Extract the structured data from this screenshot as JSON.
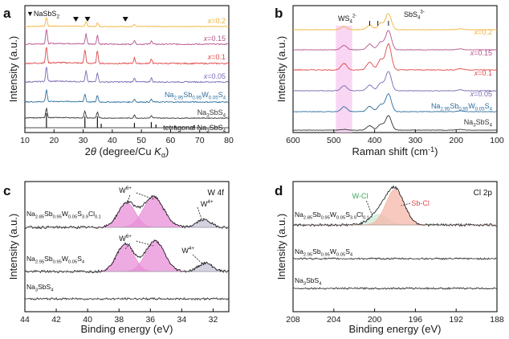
{
  "chart_data": [
    {
      "type": "line",
      "panel": "a",
      "title": "",
      "xlabel": "2θ (degree/Cu Kα)",
      "ylabel": "Intensity (a.u.)",
      "xlim": [
        10,
        80
      ],
      "xticks": [
        10,
        20,
        30,
        40,
        50,
        60,
        70,
        80
      ],
      "marker_legend": "▼NaSbS2",
      "marker_positions": [
        17.4,
        27.5,
        31.5,
        44.5
      ],
      "series": [
        {
          "name": "x=0.2",
          "color": "#f2b233",
          "peaks": [
            [
              17.4,
              1.0
            ],
            [
              31.0,
              0.55
            ],
            [
              34.9,
              0.4
            ],
            [
              47.6,
              0.25
            ]
          ]
        },
        {
          "name": "x=0.15",
          "color": "#b5538c",
          "peaks": [
            [
              17.4,
              1.0
            ],
            [
              31.0,
              0.7
            ],
            [
              34.9,
              0.6
            ],
            [
              47.6,
              0.3
            ],
            [
              53.4,
              0.25
            ]
          ]
        },
        {
          "name": "x=0.1",
          "color": "#e0484a",
          "peaks": [
            [
              17.4,
              1.0
            ],
            [
              30.6,
              0.85
            ],
            [
              34.9,
              0.8
            ],
            [
              47.6,
              0.35
            ],
            [
              53.4,
              0.3
            ]
          ]
        },
        {
          "name": "x=0.05",
          "color": "#7a67b3",
          "peaks": [
            [
              17.4,
              1.0
            ],
            [
              31.0,
              0.75
            ],
            [
              34.9,
              0.65
            ],
            [
              47.6,
              0.3
            ],
            [
              53.4,
              0.28
            ]
          ]
        },
        {
          "name": "Na2.95Sb0.95W0.05S4",
          "color": "#2c6e9e",
          "peaks": [
            [
              17.4,
              1.0
            ],
            [
              30.6,
              0.65
            ],
            [
              34.9,
              0.55
            ],
            [
              47.6,
              0.25
            ],
            [
              53.4,
              0.22
            ]
          ]
        },
        {
          "name": "Na3SbS4",
          "color": "#333333",
          "peaks": [
            [
              17.4,
              1.0
            ],
            [
              30.6,
              0.7
            ],
            [
              34.9,
              0.6
            ],
            [
              47.6,
              0.3
            ],
            [
              53.4,
              0.25
            ]
          ]
        },
        {
          "name": "tetragonal Na3SbS4",
          "color": "#111111",
          "stick_positions": [
            17.4,
            30.6,
            34.9,
            36.2,
            47.6,
            53.4,
            55.0,
            61.5,
            68.0
          ]
        }
      ]
    },
    {
      "type": "line",
      "panel": "b",
      "title": "",
      "xlabel": "Raman shift (cm-1)",
      "ylabel": "Intensity (a.u.)",
      "xlim": [
        600,
        100
      ],
      "xticks": [
        600,
        500,
        400,
        300,
        200,
        100
      ],
      "highlight_band": [
        495,
        455
      ],
      "annotations": [
        "WS4 2-",
        "SbS4 3-"
      ],
      "series": [
        {
          "name": "x=0.2",
          "color": "#f2b233"
        },
        {
          "name": "x=0.15",
          "color": "#b5538c"
        },
        {
          "name": "x=0.1",
          "color": "#e0484a"
        },
        {
          "name": "x=0.05",
          "color": "#7a67b3"
        },
        {
          "name": "Na2.95Sb0.95W0.05S4",
          "color": "#2c6e9e"
        },
        {
          "name": "Na3SbS4",
          "color": "#333333"
        }
      ],
      "peaks": [
        [
          475,
          0.35
        ],
        [
          412,
          0.3
        ],
        [
          385,
          0.4
        ],
        [
          366,
          1.0
        ],
        [
          190,
          0.05
        ]
      ]
    },
    {
      "type": "line",
      "panel": "c",
      "title": "W 4f",
      "xlabel": "Binding energy (eV)",
      "ylabel": "Intensity (a.u.)",
      "xlim": [
        44,
        31
      ],
      "xticks": [
        44,
        42,
        40,
        38,
        36,
        34,
        32
      ],
      "annotations": [
        "W6+",
        "W4+"
      ],
      "series": [
        {
          "name": "Na2.85Sb0.95W0.05S3.9Cl0.1",
          "fit_peaks": [
            [
              37.5,
              0.8
            ],
            [
              35.8,
              1.0
            ],
            [
              32.6,
              0.25
            ]
          ]
        },
        {
          "name": "Na2.95Sb0.95W0.05S4",
          "fit_peaks": [
            [
              37.6,
              0.9
            ],
            [
              35.7,
              1.0
            ],
            [
              32.5,
              0.28
            ]
          ]
        },
        {
          "name": "Na3SbS4",
          "fit_peaks": []
        }
      ]
    },
    {
      "type": "line",
      "panel": "d",
      "title": "Cl 2p",
      "xlabel": "Binding energy (eV)",
      "ylabel": "Intensity (a.u.)",
      "xlim": [
        208,
        188
      ],
      "xticks": [
        208,
        204,
        200,
        196,
        192,
        188
      ],
      "annotations": [
        "W-Cl",
        "Sb-Cl"
      ],
      "series": [
        {
          "name": "Na2.85Sb0.95W0.05S3.9Cl0.1",
          "fit_peaks": [
            [
              199.6,
              0.3
            ],
            [
              198.0,
              1.0
            ]
          ]
        },
        {
          "name": "Na2.95Sb0.95W0.05S4",
          "fit_peaks": []
        },
        {
          "name": "Na3SbS4",
          "fit_peaks": []
        }
      ]
    }
  ],
  "labels": {
    "a": {
      "letter": "a",
      "marker_legend_text": "▼NaSbS",
      "marker_legend_sub": "2",
      "x_02": "x=0.2",
      "x_015": "x=0.15",
      "x_01": "x=0.1",
      "x_005": "x=0.05",
      "na295_parts": [
        "Na",
        "2.95",
        "Sb",
        "0.95",
        "W",
        "0.05",
        "S",
        "4"
      ],
      "na3_parts": [
        "Na",
        "3",
        "SbS",
        "4"
      ],
      "tet_parts": [
        "tetragonal Na",
        "3",
        "SbS",
        "4"
      ],
      "xlabel_parts": [
        "2",
        "θ",
        " (degree/Cu ",
        "K",
        "α",
        ")"
      ]
    },
    "b": {
      "letter": "b",
      "ws4_parts": [
        "WS",
        "4",
        "2-"
      ],
      "sbs4_parts": [
        "SbS",
        "4",
        "3-"
      ],
      "x_02": "x=0.2",
      "x_015": "x=0.15",
      "x_01": "x=0.1",
      "x_005": "x=0.05",
      "na295_parts": [
        "Na",
        "2.95",
        "Sb",
        "0.95",
        "W",
        "0.05",
        "S",
        "4"
      ],
      "na3_parts": [
        "Na",
        "3",
        "SbS",
        "4"
      ],
      "xlabel_parts": [
        "Raman shift (cm",
        "-1",
        ")"
      ]
    },
    "c": {
      "letter": "c",
      "title": "W 4f",
      "w6a": [
        "W",
        "6+"
      ],
      "w4a": [
        "W",
        "4+"
      ],
      "w6b": [
        "W",
        "6+"
      ],
      "w4b": [
        "W",
        "4+"
      ],
      "cl_parts": [
        "Na",
        "2.85",
        "Sb",
        "0.95",
        "W",
        "0.05",
        "S",
        "3.9",
        "Cl",
        "0.1"
      ],
      "na295_parts": [
        "Na",
        "2.95",
        "Sb",
        "0.95",
        "W",
        "0.05",
        "S",
        "4"
      ],
      "na3_parts": [
        "Na",
        "3",
        "SbS",
        "4"
      ]
    },
    "d": {
      "letter": "d",
      "title": "Cl 2p",
      "wcl": "W-Cl",
      "sbcl": "Sb-Cl",
      "cl_parts": [
        "Na",
        "2.85",
        "Sb",
        "0.95",
        "W",
        "0.05",
        "S",
        "3.9",
        "Cl",
        "0.1"
      ],
      "na295_parts": [
        "Na",
        "2.95",
        "Sb",
        "0.95",
        "W",
        "0.05",
        "S",
        "4"
      ],
      "na3_parts": [
        "Na",
        "3",
        "SbS",
        "4"
      ]
    },
    "ylabel": "Intensity (a.u.)",
    "xlabel_binding": "Binding energy (eV)"
  },
  "colors": {
    "x02": "#f2b233",
    "x015": "#b5538c",
    "x01": "#e0484a",
    "x005": "#7a67b3",
    "na295": "#2c6e9e",
    "na3": "#333333",
    "black": "#111111",
    "band": "#f7c8ef",
    "pink_fill": "#e88fd8",
    "grey_fill": "#c7c3d6",
    "green": "#3aa55a",
    "red": "#e0484a",
    "salmon": "#f6b7a9"
  }
}
